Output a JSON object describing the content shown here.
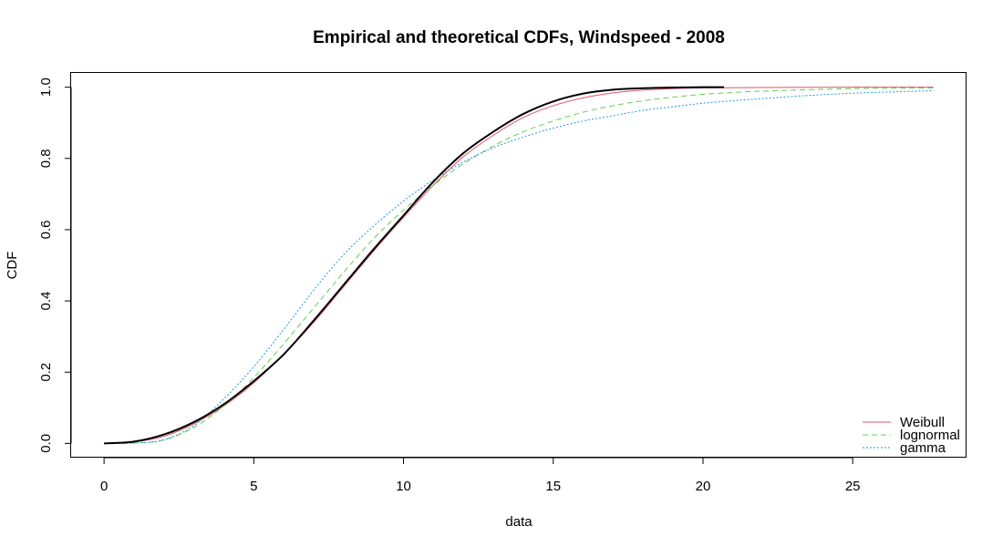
{
  "chart_data": {
    "type": "line",
    "title": "Empirical and theoretical CDFs, Windspeed - 2008",
    "xlabel": "data",
    "ylabel": "CDF",
    "xlim": [
      -1.1,
      28.8
    ],
    "ylim": [
      -0.04,
      1.04
    ],
    "x_ticks": [
      0,
      5,
      10,
      15,
      20,
      25
    ],
    "y_ticks": [
      0.0,
      0.2,
      0.4,
      0.6,
      0.8,
      1.0
    ],
    "y_tick_labels": [
      "0.0",
      "0.2",
      "0.4",
      "0.6",
      "0.8",
      "1.0"
    ],
    "grid": false,
    "legend_position": "bottom-right",
    "empirical": {
      "color": "#000000",
      "x": [
        0,
        1,
        2,
        3,
        4,
        5,
        6,
        7,
        8,
        9,
        10,
        11,
        12,
        13,
        14,
        15,
        16,
        17,
        18,
        19,
        20,
        20.7
      ],
      "y": [
        0.0,
        0.005,
        0.025,
        0.06,
        0.11,
        0.175,
        0.25,
        0.345,
        0.445,
        0.545,
        0.64,
        0.735,
        0.815,
        0.875,
        0.925,
        0.96,
        0.982,
        0.993,
        0.997,
        0.999,
        1.0,
        1.0
      ]
    },
    "series": [
      {
        "name": "Weibull",
        "color": "#DF536B",
        "dash": "solid",
        "x": [
          0,
          1,
          2,
          3,
          4,
          5,
          6,
          7,
          8,
          9,
          10,
          11,
          12,
          13,
          14,
          15,
          16,
          17,
          18,
          19,
          20,
          22,
          25,
          27.7
        ],
        "y": [
          0.0,
          0.004,
          0.02,
          0.055,
          0.105,
          0.17,
          0.25,
          0.34,
          0.44,
          0.54,
          0.635,
          0.725,
          0.805,
          0.865,
          0.915,
          0.948,
          0.97,
          0.984,
          0.992,
          0.996,
          0.998,
          0.999,
          1.0,
          1.0
        ]
      },
      {
        "name": "lognormal",
        "color": "#61D04F",
        "dash": "dashed",
        "x": [
          0,
          1,
          2,
          3,
          4,
          5,
          6,
          7,
          8,
          9,
          10,
          11,
          12,
          13,
          14,
          15,
          16,
          17,
          18,
          19,
          20,
          21,
          22,
          25,
          27.7
        ],
        "y": [
          0.0,
          0.001,
          0.01,
          0.045,
          0.105,
          0.185,
          0.28,
          0.38,
          0.48,
          0.575,
          0.655,
          0.725,
          0.785,
          0.835,
          0.875,
          0.905,
          0.93,
          0.948,
          0.962,
          0.972,
          0.98,
          0.985,
          0.989,
          0.996,
          0.998
        ]
      },
      {
        "name": "gamma",
        "color": "#2297E6",
        "dash": "dotted",
        "x": [
          0,
          1,
          2,
          3,
          4,
          5,
          6,
          7,
          8,
          9,
          10,
          11,
          12,
          13,
          14,
          15,
          16,
          17,
          18,
          19,
          20,
          21,
          22,
          23,
          24,
          25,
          26,
          27.7
        ],
        "y": [
          0.0,
          0.001,
          0.01,
          0.05,
          0.125,
          0.215,
          0.32,
          0.43,
          0.53,
          0.61,
          0.68,
          0.74,
          0.79,
          0.83,
          0.86,
          0.885,
          0.905,
          0.92,
          0.935,
          0.945,
          0.955,
          0.962,
          0.968,
          0.974,
          0.979,
          0.983,
          0.986,
          0.99
        ]
      }
    ]
  }
}
